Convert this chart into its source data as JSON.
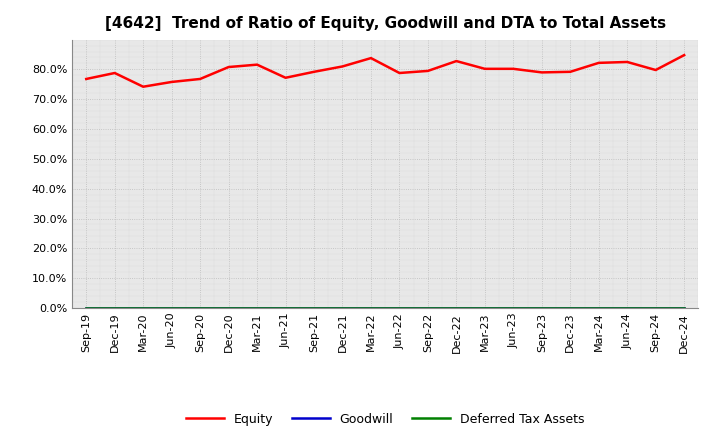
{
  "title": "[4642]  Trend of Ratio of Equity, Goodwill and DTA to Total Assets",
  "x_labels": [
    "Sep-19",
    "Dec-19",
    "Mar-20",
    "Jun-20",
    "Sep-20",
    "Dec-20",
    "Mar-21",
    "Jun-21",
    "Sep-21",
    "Dec-21",
    "Mar-22",
    "Jun-22",
    "Sep-22",
    "Dec-22",
    "Mar-23",
    "Jun-23",
    "Sep-23",
    "Dec-23",
    "Mar-24",
    "Jun-24",
    "Sep-24",
    "Dec-24"
  ],
  "equity": [
    76.8,
    78.8,
    74.2,
    75.8,
    76.8,
    80.8,
    81.6,
    77.2,
    79.2,
    81.0,
    83.8,
    78.8,
    79.5,
    82.8,
    80.2,
    80.2,
    79.0,
    79.2,
    82.2,
    82.5,
    79.8,
    84.8
  ],
  "goodwill": [
    0.0,
    0.0,
    0.0,
    0.0,
    0.0,
    0.0,
    0.0,
    0.0,
    0.0,
    0.0,
    0.0,
    0.0,
    0.0,
    0.0,
    0.0,
    0.0,
    0.0,
    0.0,
    0.0,
    0.0,
    0.0,
    0.0
  ],
  "dta": [
    0.0,
    0.0,
    0.0,
    0.0,
    0.0,
    0.0,
    0.0,
    0.0,
    0.0,
    0.0,
    0.0,
    0.0,
    0.0,
    0.0,
    0.0,
    0.0,
    0.0,
    0.0,
    0.0,
    0.0,
    0.0,
    0.0
  ],
  "equity_color": "#ff0000",
  "goodwill_color": "#0000cc",
  "dta_color": "#008000",
  "ylim_min": 0,
  "ylim_max": 90,
  "yticks": [
    0,
    10,
    20,
    30,
    40,
    50,
    60,
    70,
    80
  ],
  "background_color": "#ffffff",
  "plot_bg_color": "#e8e8e8",
  "grid_color": "#bbbbbb",
  "title_fontsize": 11,
  "tick_fontsize": 8,
  "legend_labels": [
    "Equity",
    "Goodwill",
    "Deferred Tax Assets"
  ],
  "linewidth": 1.8
}
